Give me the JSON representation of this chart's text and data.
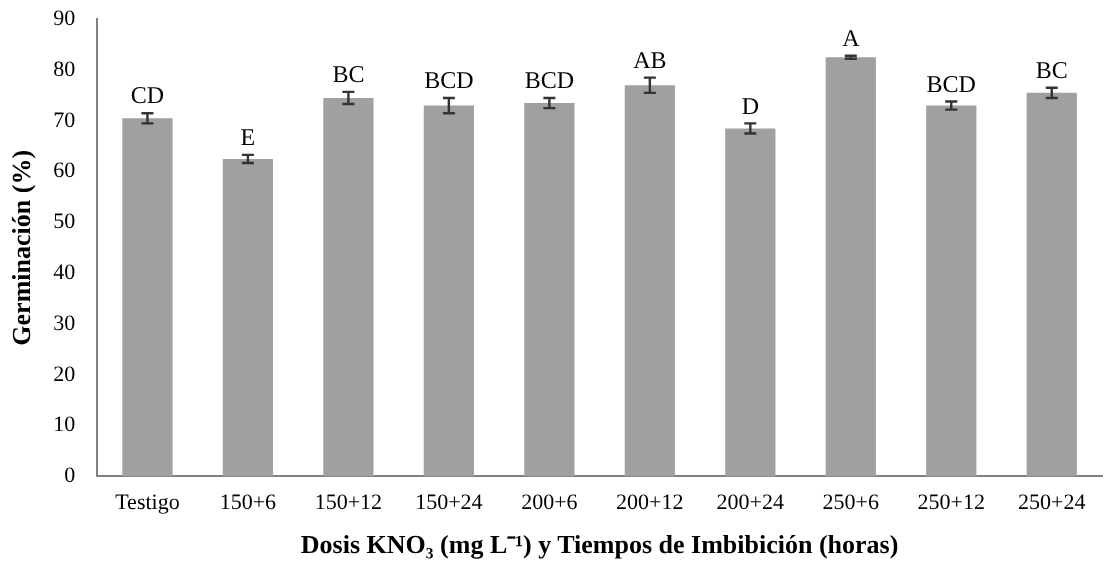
{
  "chart_data": {
    "type": "bar",
    "xlabel": "Dosis KNO₃ (mg L⁻¹) y Tiempos de Imbibición (horas)",
    "ylabel": "Germinación (%)",
    "categories": [
      "Testigo",
      "150+6",
      "150+12",
      "150+24",
      "200+6",
      "200+12",
      "200+24",
      "250+6",
      "250+12",
      "250+24"
    ],
    "values": [
      70.5,
      62.5,
      74.5,
      73,
      73.5,
      77,
      68.5,
      82.5,
      73,
      75.5
    ],
    "errors": [
      1,
      0.8,
      1.2,
      1.5,
      1,
      1.5,
      1,
      0.3,
      0.8,
      1
    ],
    "color": "#a0a0a0",
    "ylim": [
      0,
      90
    ],
    "yticks": [
      0,
      10,
      20,
      30,
      40,
      50,
      60,
      70,
      80,
      90
    ],
    "grid": false,
    "legend": false,
    "annotations": [
      {
        "text": "CD",
        "x": "Testigo",
        "y": 71.5
      },
      {
        "text": "E",
        "x": "150+6",
        "y": 63.3
      },
      {
        "text": "BC",
        "x": "150+12",
        "y": 75.7
      },
      {
        "text": "BCD",
        "x": "150+24",
        "y": 74.5
      },
      {
        "text": "BCD",
        "x": "200+6",
        "y": 74.5
      },
      {
        "text": "AB",
        "x": "200+12",
        "y": 78.5
      },
      {
        "text": "D",
        "x": "200+24",
        "y": 69.5
      },
      {
        "text": "A",
        "x": "250+6",
        "y": 82.8
      },
      {
        "text": "BCD",
        "x": "250+12",
        "y": 73.8
      },
      {
        "text": "BC",
        "x": "250+24",
        "y": 76.5
      }
    ]
  }
}
